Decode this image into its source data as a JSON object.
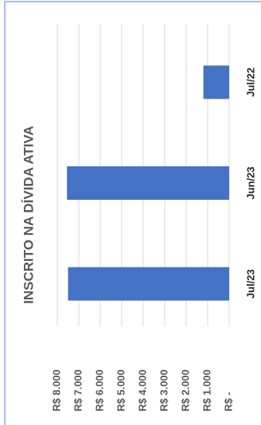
{
  "chart_data": {
    "type": "bar",
    "title": "INSCRITO NA DÍVIDA ATIVA",
    "categories": [
      "Jul/23",
      "Jun/23",
      "Jul/22"
    ],
    "values": [
      7500,
      7550,
      1200
    ],
    "color": "#4472c4",
    "ylim": [
      0,
      8000
    ],
    "yticks": [
      {
        "value": 0,
        "label": "R$ -"
      },
      {
        "value": 1000,
        "label": "R$ 1.000"
      },
      {
        "value": 2000,
        "label": "R$ 2.000"
      },
      {
        "value": 3000,
        "label": "R$ 3.000"
      },
      {
        "value": 4000,
        "label": "R$ 4.000"
      },
      {
        "value": 5000,
        "label": "R$ 5.000"
      },
      {
        "value": 6000,
        "label": "R$ 6.000"
      },
      {
        "value": 7000,
        "label": "R$ 7.000"
      },
      {
        "value": 8000,
        "label": "R$ 8.000"
      }
    ],
    "grid": true
  }
}
